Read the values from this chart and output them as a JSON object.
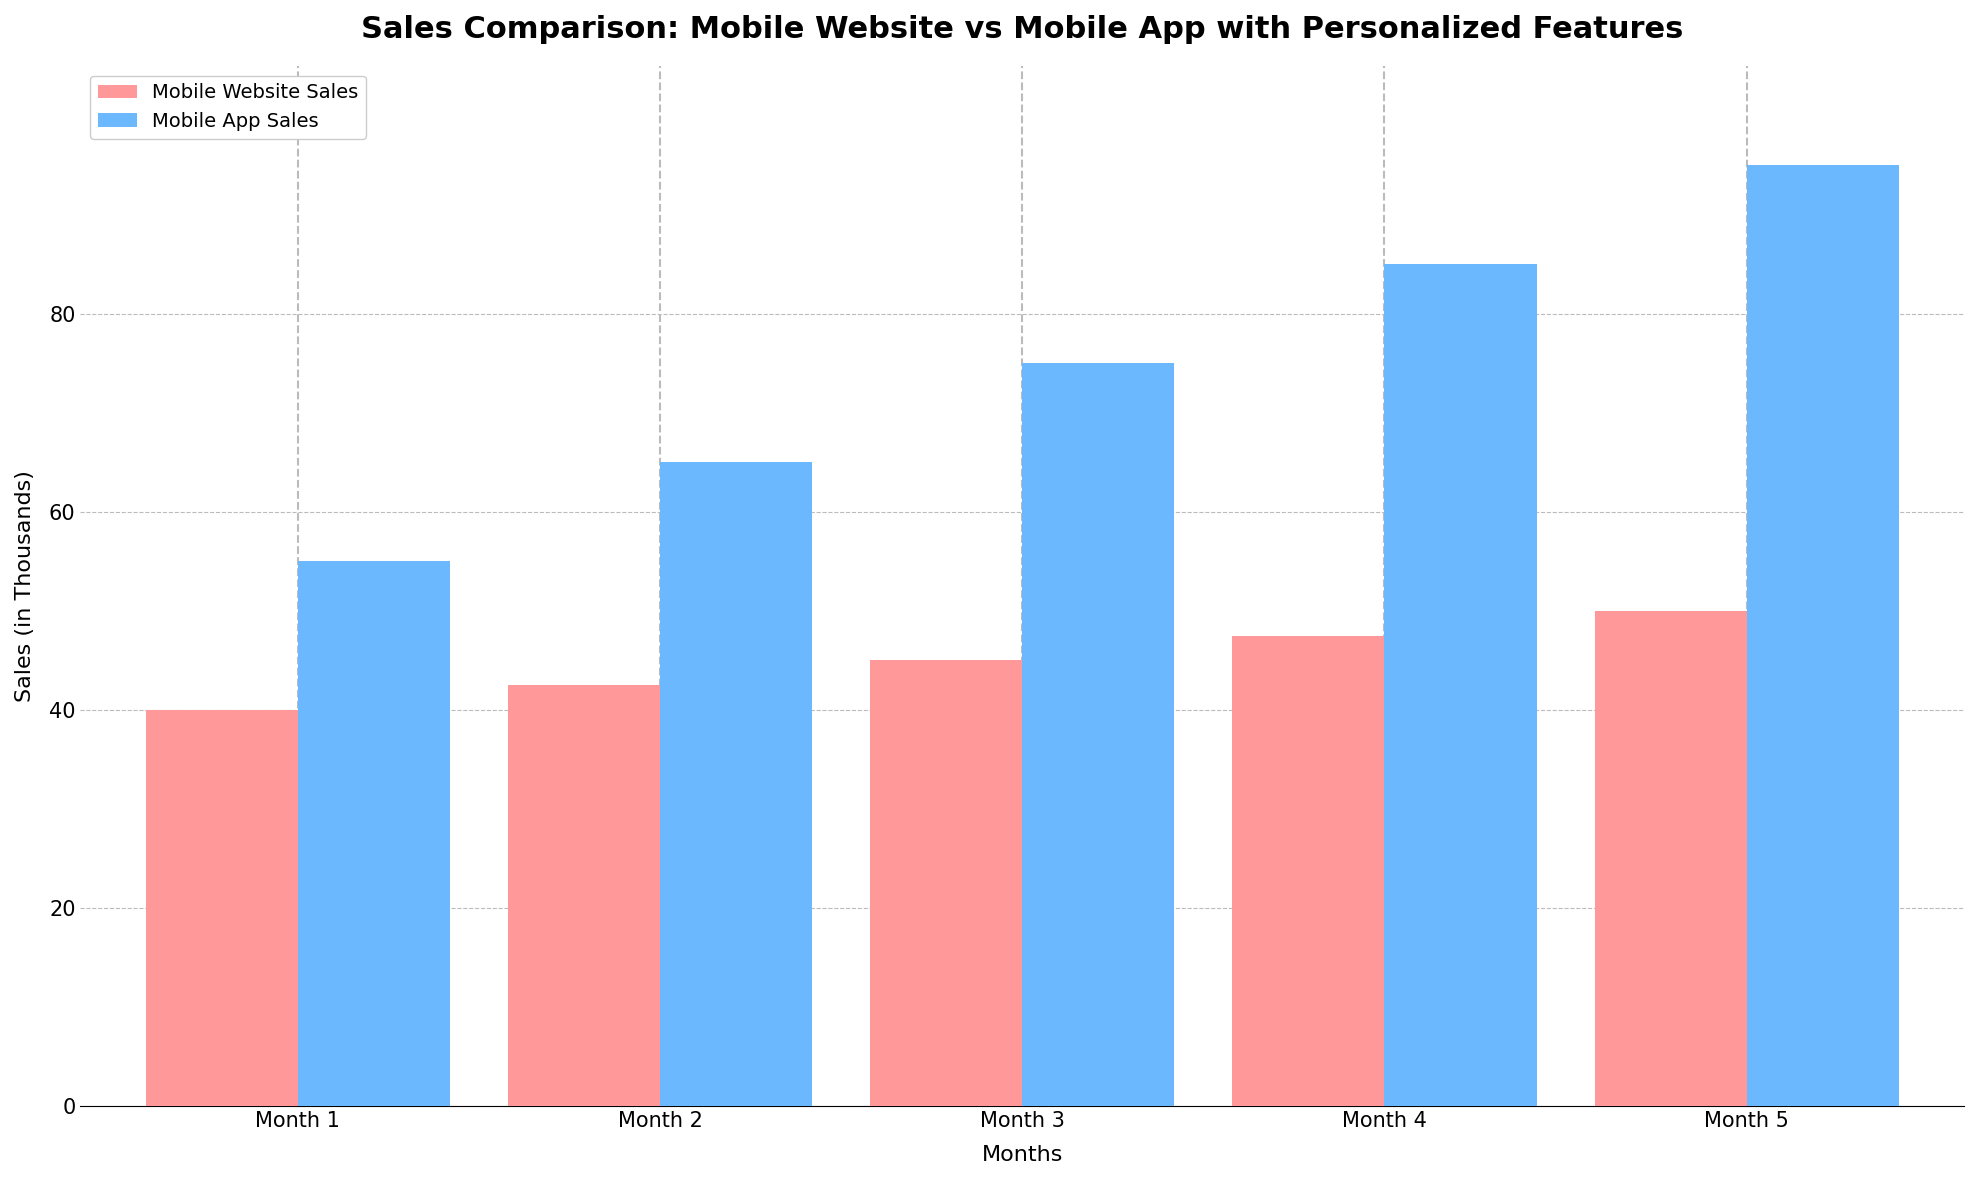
{
  "title": "Sales Comparison: Mobile Website vs Mobile App with Personalized Features",
  "xlabel": "Months",
  "ylabel": "Sales (in Thousands)",
  "categories": [
    "Month 1",
    "Month 2",
    "Month 3",
    "Month 4",
    "Month 5"
  ],
  "mobile_website_sales": [
    40,
    42.5,
    45,
    47.5,
    50
  ],
  "mobile_app_sales": [
    55,
    65,
    75,
    85,
    95
  ],
  "website_color": "#FF9999",
  "app_color": "#6BB8FF",
  "legend_labels": [
    "Mobile Website Sales",
    "Mobile App Sales"
  ],
  "ylim": [
    0,
    105
  ],
  "yticks": [
    0,
    20,
    40,
    60,
    80
  ],
  "bar_width": 0.42,
  "title_fontsize": 22,
  "axis_label_fontsize": 16,
  "tick_fontsize": 15,
  "legend_fontsize": 14,
  "background_color": "#FFFFFF",
  "grid_color": "#BBBBBB",
  "grid_linestyle": "--"
}
